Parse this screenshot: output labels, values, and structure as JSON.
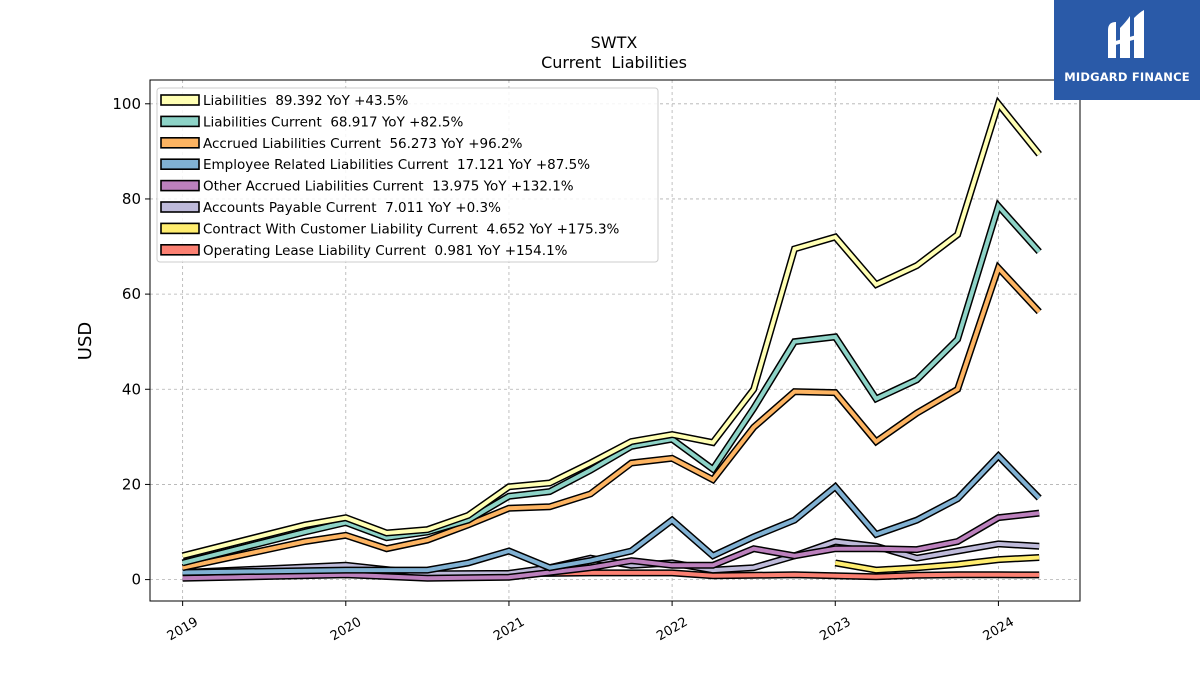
{
  "brand": {
    "name": "MIDGARD FINANCE",
    "bg_color": "#2a5aa8",
    "icon": "midgard-logo-icon"
  },
  "chart_data": {
    "type": "line",
    "title": "SWTX",
    "subtitle": "Current  Liabilities",
    "ylabel": "USD",
    "xlabel": "",
    "ylim": [
      -4.5,
      105
    ],
    "xlim": [
      2018.8,
      2024.5
    ],
    "yticks": [
      0,
      20,
      40,
      60,
      80,
      100
    ],
    "xticks": [
      2019,
      2020,
      2021,
      2022,
      2023,
      2024
    ],
    "grid": true,
    "legend_position": "top-left",
    "series": [
      {
        "name": "Liabilities  89.392 YoY +43.5%",
        "color": "#ffffb3",
        "x": [
          2019.0,
          2019.75,
          2020.0,
          2020.25,
          2020.5,
          2020.75,
          2021.0,
          2021.25,
          2021.5,
          2021.75,
          2022.0,
          2022.25,
          2022.5,
          2022.75,
          2023.0,
          2023.25,
          2023.5,
          2023.75,
          2024.0,
          2024.25
        ],
        "y": [
          5,
          11.5,
          13,
          9.8,
          10.5,
          13.5,
          19.5,
          20.3,
          24.5,
          29,
          30.5,
          28.8,
          40,
          69.5,
          72,
          62,
          66,
          72.5,
          100,
          89.392
        ]
      },
      {
        "name": "Liabilities Current  68.917 YoY +82.5%",
        "color": "#8dd3c7",
        "x": [
          2019.0,
          2019.75,
          2020.0,
          2020.25,
          2020.5,
          2020.75,
          2021.0,
          2021.25,
          2021.5,
          2021.75,
          2022.0,
          2022.25,
          2022.5,
          2022.75,
          2023.0,
          2023.25,
          2023.5,
          2023.75,
          2024.0,
          2024.25
        ],
        "y": [
          3.5,
          10,
          12,
          8.8,
          10,
          12.5,
          17.5,
          18.5,
          23,
          28,
          29.5,
          23.2,
          36,
          50,
          51,
          38,
          42,
          50.5,
          78.5,
          68.917
        ]
      },
      {
        "name": "Accrued Liabilities Current  56.273 YoY +96.2%",
        "color": "#fdb462",
        "x": [
          2019.0,
          2019.75,
          2020.0,
          2020.25,
          2020.5,
          2020.75,
          2021.0,
          2021.25,
          2021.5,
          2021.75,
          2022.0,
          2022.25,
          2022.5,
          2022.75,
          2023.0,
          2023.25,
          2023.5,
          2023.75,
          2024.0,
          2024.25
        ],
        "y": [
          2.5,
          8,
          9.3,
          6.5,
          8.3,
          11.5,
          15,
          15.3,
          18,
          24.5,
          25.5,
          21,
          32,
          39.5,
          39.3,
          29,
          35,
          40,
          65.5,
          56.273
        ]
      },
      {
        "name": "Employee Related Liabilities Current  17.121 YoY +87.5%",
        "color": "#80b1d3",
        "x": [
          2019.0,
          2020.0,
          2020.5,
          2020.75,
          2021.0,
          2021.25,
          2021.5,
          2021.75,
          2022.0,
          2022.25,
          2022.5,
          2022.75,
          2023.0,
          2023.25,
          2023.5,
          2023.75,
          2024.0,
          2024.25
        ],
        "y": [
          1.5,
          2,
          2,
          3.5,
          6,
          2.5,
          4,
          6,
          12.5,
          5,
          9,
          12.5,
          19.5,
          9.5,
          12.5,
          17,
          26,
          17.121
        ]
      },
      {
        "name": "Other Accrued Liabilities Current  13.975 YoY +132.1%",
        "color": "#bc80bd",
        "x": [
          2019.0,
          2020.0,
          2020.5,
          2021.0,
          2021.5,
          2021.75,
          2022.0,
          2022.25,
          2022.5,
          2022.75,
          2023.0,
          2023.25,
          2023.5,
          2023.75,
          2024.0,
          2024.25
        ],
        "y": [
          0.3,
          1,
          0.3,
          0.5,
          2.5,
          4,
          3,
          3,
          6.5,
          5,
          6.5,
          6.5,
          6.3,
          8,
          13,
          13.975
        ]
      },
      {
        "name": "Accounts Payable Current  7.011 YoY +0.3%",
        "color": "#bebada",
        "x": [
          2019.0,
          2020.0,
          2020.5,
          2021.0,
          2021.25,
          2021.5,
          2021.75,
          2022.0,
          2022.25,
          2022.5,
          2022.75,
          2023.0,
          2023.25,
          2023.5,
          2023.75,
          2024.0,
          2024.25
        ],
        "y": [
          1.5,
          3,
          1.2,
          1.3,
          2.5,
          4.5,
          3,
          3.5,
          2,
          2.5,
          5,
          8,
          7,
          4.5,
          6,
          7.5,
          7.011
        ]
      },
      {
        "name": "Contract With Customer Liability Current  4.652 YoY +175.3%",
        "color": "#ffed6f",
        "x": [
          2023.0,
          2023.25,
          2023.5,
          2023.75,
          2024.0,
          2024.25
        ],
        "y": [
          3.5,
          2,
          2.5,
          3.2,
          4.2,
          4.652
        ]
      },
      {
        "name": "Operating Lease Liability Current  0.981 YoY +154.1%",
        "color": "#fb8072",
        "x": [
          2021.0,
          2021.25,
          2021.5,
          2021.75,
          2022.0,
          2022.25,
          2022.5,
          2022.75,
          2023.0,
          2023.25,
          2023.5,
          2023.75,
          2024.0,
          2024.25
        ],
        "y": [
          1.3,
          1.3,
          1.4,
          1.4,
          1.4,
          0.8,
          0.9,
          1,
          0.8,
          0.6,
          0.9,
          1,
          1,
          0.981
        ]
      }
    ]
  }
}
